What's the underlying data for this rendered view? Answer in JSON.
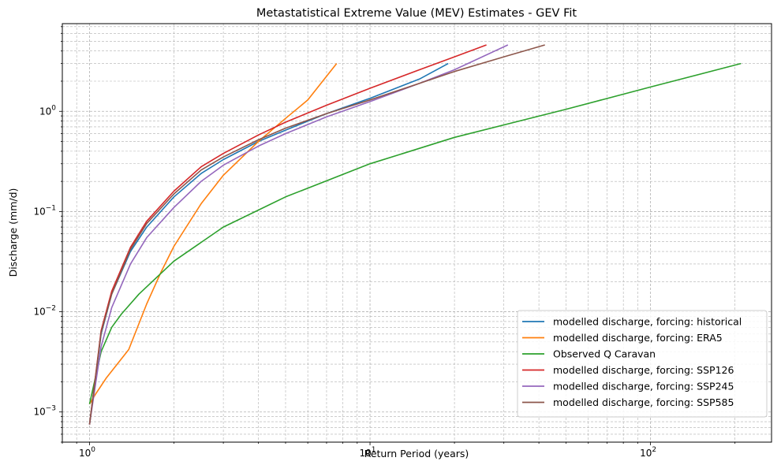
{
  "chart_data": {
    "type": "line",
    "title": "Metastatistical Extreme Value (MEV) Estimates - GEV Fit",
    "xlabel": "Return Period (years)",
    "ylabel": "Discharge (mm/d)",
    "xscale": "log",
    "yscale": "log",
    "xlim": [
      0.8,
      270
    ],
    "ylim": [
      0.0005,
      7.5
    ],
    "grid": true,
    "legend_position": "lower-right",
    "x_ticks": [
      {
        "value": 1,
        "label": "10",
        "exp": "0"
      },
      {
        "value": 10,
        "label": "10",
        "exp": "1"
      },
      {
        "value": 100,
        "label": "10",
        "exp": "2"
      }
    ],
    "y_ticks": [
      {
        "value": 0.001,
        "label": "10",
        "exp": "−3"
      },
      {
        "value": 0.01,
        "label": "10",
        "exp": "−2"
      },
      {
        "value": 0.1,
        "label": "10",
        "exp": "−1"
      },
      {
        "value": 1,
        "label": "10",
        "exp": "0"
      }
    ],
    "series": [
      {
        "name": "modelled discharge, forcing: historical",
        "color": "#1f77b4",
        "points": [
          [
            1.0,
            0.00075
          ],
          [
            1.1,
            0.006
          ],
          [
            1.2,
            0.015
          ],
          [
            1.4,
            0.04
          ],
          [
            1.6,
            0.07
          ],
          [
            2.0,
            0.14
          ],
          [
            2.5,
            0.24
          ],
          [
            3.0,
            0.33
          ],
          [
            4.0,
            0.5
          ],
          [
            5.0,
            0.65
          ],
          [
            7.0,
            0.95
          ],
          [
            10.0,
            1.35
          ],
          [
            15.0,
            2.1
          ],
          [
            19.0,
            3.0
          ]
        ]
      },
      {
        "name": "modelled discharge, forcing: ERA5",
        "color": "#ff7f0e",
        "points": [
          [
            1.0,
            0.0012
          ],
          [
            1.05,
            0.0015
          ],
          [
            1.15,
            0.0022
          ],
          [
            1.38,
            0.0042
          ],
          [
            1.6,
            0.012
          ],
          [
            1.8,
            0.025
          ],
          [
            2.0,
            0.045
          ],
          [
            2.5,
            0.12
          ],
          [
            3.0,
            0.23
          ],
          [
            4.0,
            0.5
          ],
          [
            5.0,
            0.85
          ],
          [
            6.0,
            1.3
          ],
          [
            7.6,
            3.0
          ]
        ]
      },
      {
        "name": "Observed Q Caravan",
        "color": "#2ca02c",
        "points": [
          [
            1.0,
            0.0012
          ],
          [
            1.1,
            0.004
          ],
          [
            1.2,
            0.007
          ],
          [
            1.3,
            0.0095
          ],
          [
            1.5,
            0.015
          ],
          [
            2.0,
            0.032
          ],
          [
            3.0,
            0.07
          ],
          [
            5.0,
            0.14
          ],
          [
            10.0,
            0.3
          ],
          [
            20.0,
            0.55
          ],
          [
            50.0,
            1.05
          ],
          [
            100.0,
            1.75
          ],
          [
            210.0,
            3.0
          ]
        ]
      },
      {
        "name": "modelled discharge, forcing: SSP126",
        "color": "#d62728",
        "points": [
          [
            1.0,
            0.00075
          ],
          [
            1.1,
            0.0065
          ],
          [
            1.2,
            0.016
          ],
          [
            1.4,
            0.044
          ],
          [
            1.6,
            0.08
          ],
          [
            2.0,
            0.16
          ],
          [
            2.5,
            0.28
          ],
          [
            3.0,
            0.38
          ],
          [
            4.0,
            0.58
          ],
          [
            5.0,
            0.78
          ],
          [
            7.0,
            1.15
          ],
          [
            10.0,
            1.7
          ],
          [
            15.0,
            2.6
          ],
          [
            20.0,
            3.5
          ],
          [
            26.0,
            4.6
          ]
        ]
      },
      {
        "name": "modelled discharge, forcing: SSP245",
        "color": "#9467bd",
        "points": [
          [
            1.0,
            0.00075
          ],
          [
            1.1,
            0.0045
          ],
          [
            1.2,
            0.011
          ],
          [
            1.4,
            0.03
          ],
          [
            1.6,
            0.055
          ],
          [
            2.0,
            0.11
          ],
          [
            2.5,
            0.2
          ],
          [
            3.0,
            0.29
          ],
          [
            4.0,
            0.45
          ],
          [
            5.0,
            0.6
          ],
          [
            7.0,
            0.88
          ],
          [
            10.0,
            1.25
          ],
          [
            15.0,
            1.9
          ],
          [
            20.0,
            2.6
          ],
          [
            31.0,
            4.6
          ]
        ]
      },
      {
        "name": "modelled discharge, forcing: SSP585",
        "color": "#8c564b",
        "points": [
          [
            1.0,
            0.00075
          ],
          [
            1.1,
            0.0062
          ],
          [
            1.2,
            0.015
          ],
          [
            1.4,
            0.042
          ],
          [
            1.6,
            0.076
          ],
          [
            2.0,
            0.15
          ],
          [
            2.5,
            0.26
          ],
          [
            3.0,
            0.35
          ],
          [
            4.0,
            0.52
          ],
          [
            5.0,
            0.68
          ],
          [
            7.0,
            0.95
          ],
          [
            10.0,
            1.3
          ],
          [
            15.0,
            1.9
          ],
          [
            20.0,
            2.5
          ],
          [
            30.0,
            3.5
          ],
          [
            42.0,
            4.6
          ]
        ]
      }
    ]
  }
}
